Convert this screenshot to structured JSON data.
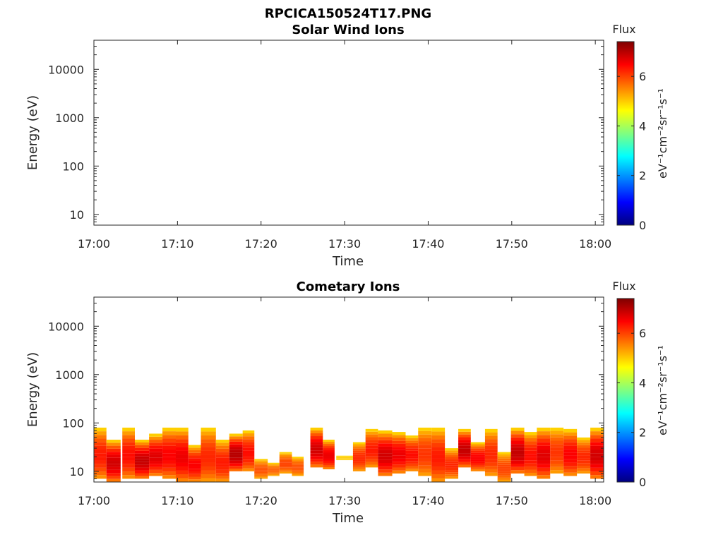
{
  "figure": {
    "title": "RPCICA150524T17.PNG"
  },
  "colorbar": {
    "label": "Flux",
    "units": "eV⁻¹cm⁻²sr⁻¹s⁻¹",
    "ticks": [
      0,
      2,
      4,
      6
    ],
    "range": [
      0,
      7.4
    ],
    "colormap": "jet"
  },
  "chart_data": [
    {
      "type": "heatmap",
      "title": "Solar Wind Ions",
      "xlabel": "Time",
      "ylabel": "Energy (eV)",
      "yscale": "log",
      "ylim": [
        6,
        40000
      ],
      "xlim": [
        "17:00",
        "18:01"
      ],
      "x_ticks": [
        "17:00",
        "17:10",
        "17:20",
        "17:30",
        "17:40",
        "17:50",
        "18:00"
      ],
      "y_ticks": [
        "10",
        "100",
        "1000",
        "10000"
      ],
      "blocks": []
    },
    {
      "type": "heatmap",
      "title": "Cometary Ions",
      "xlabel": "Time",
      "ylabel": "Energy (eV)",
      "yscale": "log",
      "ylim": [
        6,
        40000
      ],
      "xlim": [
        "17:00",
        "18:01"
      ],
      "x_ticks": [
        "17:00",
        "17:10",
        "17:20",
        "17:30",
        "17:40",
        "17:50",
        "18:00"
      ],
      "y_ticks": [
        "10",
        "100",
        "1000",
        "10000"
      ],
      "blocks": [
        {
          "t0": 0.0,
          "t1": 1.5,
          "e_min": 7,
          "e_max": 80,
          "peak": 6.3
        },
        {
          "t0": 1.5,
          "t1": 3.2,
          "e_min": 6,
          "e_max": 45,
          "peak": 6.8
        },
        {
          "t0": 3.4,
          "t1": 4.9,
          "e_min": 7,
          "e_max": 80,
          "peak": 6.4
        },
        {
          "t0": 4.9,
          "t1": 6.6,
          "e_min": 7,
          "e_max": 45,
          "peak": 6.9
        },
        {
          "t0": 6.6,
          "t1": 8.2,
          "e_min": 8,
          "e_max": 60,
          "peak": 6.7
        },
        {
          "t0": 8.2,
          "t1": 9.8,
          "e_min": 7,
          "e_max": 80,
          "peak": 6.5
        },
        {
          "t0": 9.8,
          "t1": 11.3,
          "e_min": 6,
          "e_max": 80,
          "peak": 6.6
        },
        {
          "t0": 11.3,
          "t1": 12.8,
          "e_min": 6,
          "e_max": 35,
          "peak": 6.5
        },
        {
          "t0": 12.8,
          "t1": 14.6,
          "e_min": 6,
          "e_max": 80,
          "peak": 6.2
        },
        {
          "t0": 14.6,
          "t1": 16.2,
          "e_min": 6,
          "e_max": 45,
          "peak": 6.3
        },
        {
          "t0": 16.2,
          "t1": 17.8,
          "e_min": 10,
          "e_max": 60,
          "peak": 7.0
        },
        {
          "t0": 17.8,
          "t1": 19.2,
          "e_min": 10,
          "e_max": 70,
          "peak": 6.4
        },
        {
          "t0": 19.2,
          "t1": 20.8,
          "e_min": 7,
          "e_max": 18,
          "peak": 5.9
        },
        {
          "t0": 20.8,
          "t1": 22.2,
          "e_min": 8,
          "e_max": 15,
          "peak": 5.8
        },
        {
          "t0": 22.2,
          "t1": 23.7,
          "e_min": 9,
          "e_max": 25,
          "peak": 6.0
        },
        {
          "t0": 23.7,
          "t1": 25.1,
          "e_min": 8,
          "e_max": 20,
          "peak": 5.9
        },
        {
          "t0": 25.9,
          "t1": 27.4,
          "e_min": 12,
          "e_max": 80,
          "peak": 6.8
        },
        {
          "t0": 27.4,
          "t1": 28.8,
          "e_min": 11,
          "e_max": 45,
          "peak": 6.6
        },
        {
          "t0": 29.0,
          "t1": 31.0,
          "e_min": 17,
          "e_max": 21,
          "peak": 5.0
        },
        {
          "t0": 31.0,
          "t1": 32.5,
          "e_min": 10,
          "e_max": 40,
          "peak": 6.2
        },
        {
          "t0": 32.5,
          "t1": 34.0,
          "e_min": 12,
          "e_max": 75,
          "peak": 6.3
        },
        {
          "t0": 34.0,
          "t1": 35.7,
          "e_min": 8,
          "e_max": 70,
          "peak": 6.8
        },
        {
          "t0": 35.7,
          "t1": 37.3,
          "e_min": 9,
          "e_max": 65,
          "peak": 6.6
        },
        {
          "t0": 37.3,
          "t1": 38.8,
          "e_min": 10,
          "e_max": 55,
          "peak": 6.4
        },
        {
          "t0": 38.8,
          "t1": 40.4,
          "e_min": 8,
          "e_max": 80,
          "peak": 6.1
        },
        {
          "t0": 40.4,
          "t1": 42.0,
          "e_min": 6,
          "e_max": 80,
          "peak": 6.3
        },
        {
          "t0": 42.0,
          "t1": 43.6,
          "e_min": 7,
          "e_max": 30,
          "peak": 6.2
        },
        {
          "t0": 43.6,
          "t1": 45.1,
          "e_min": 12,
          "e_max": 75,
          "peak": 6.9
        },
        {
          "t0": 45.1,
          "t1": 46.8,
          "e_min": 10,
          "e_max": 40,
          "peak": 6.5
        },
        {
          "t0": 46.8,
          "t1": 48.3,
          "e_min": 8,
          "e_max": 75,
          "peak": 6.2
        },
        {
          "t0": 48.3,
          "t1": 49.9,
          "e_min": 6,
          "e_max": 25,
          "peak": 6.0
        },
        {
          "t0": 49.9,
          "t1": 51.5,
          "e_min": 9,
          "e_max": 80,
          "peak": 6.9
        },
        {
          "t0": 51.5,
          "t1": 53.0,
          "e_min": 8,
          "e_max": 65,
          "peak": 6.4
        },
        {
          "t0": 53.0,
          "t1": 54.6,
          "e_min": 7,
          "e_max": 80,
          "peak": 6.7
        },
        {
          "t0": 54.6,
          "t1": 56.2,
          "e_min": 9,
          "e_max": 80,
          "peak": 6.1
        },
        {
          "t0": 56.2,
          "t1": 57.8,
          "e_min": 8,
          "e_max": 75,
          "peak": 6.5
        },
        {
          "t0": 57.8,
          "t1": 59.4,
          "e_min": 9,
          "e_max": 50,
          "peak": 6.2
        },
        {
          "t0": 59.4,
          "t1": 61.0,
          "e_min": 7,
          "e_max": 80,
          "peak": 6.8
        }
      ]
    }
  ]
}
